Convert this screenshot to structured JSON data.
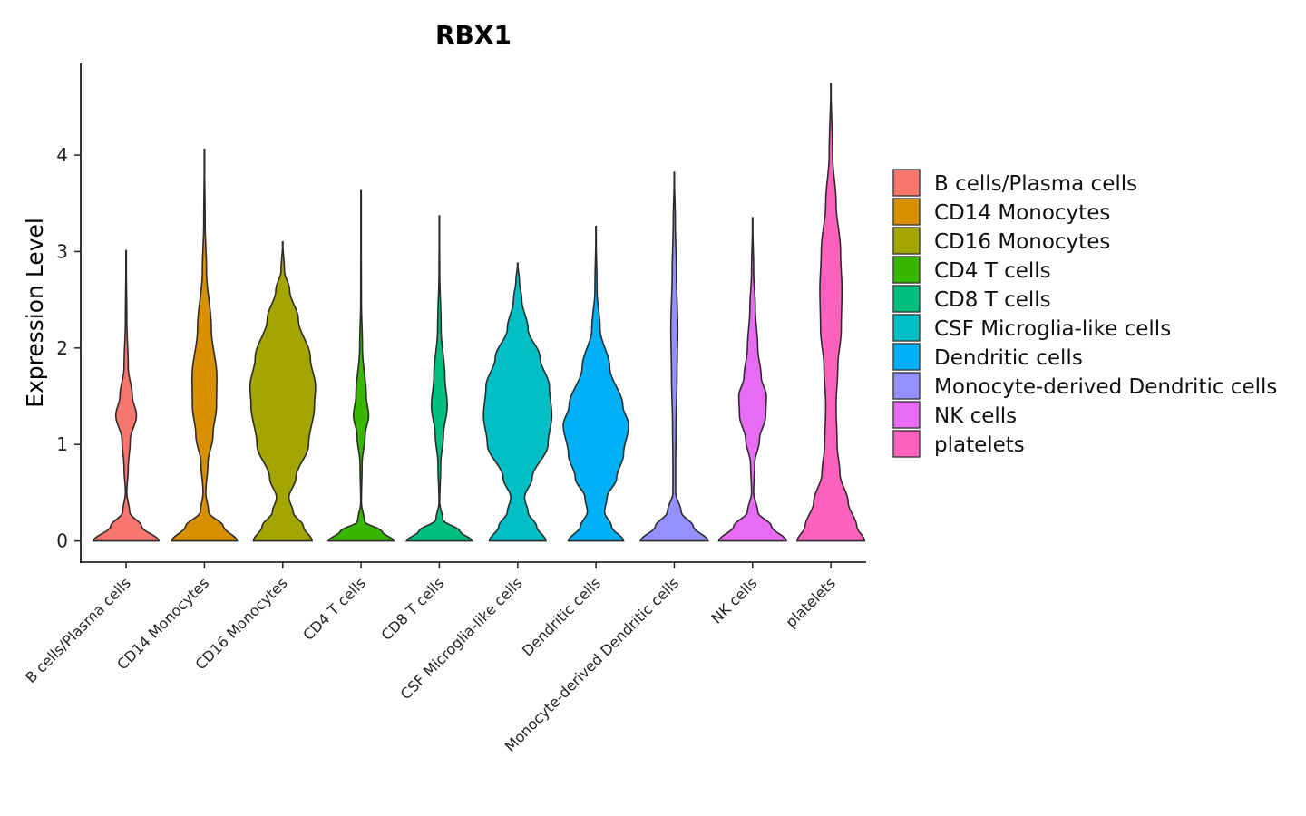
{
  "chart_data": {
    "type": "violin",
    "title": "RBX1",
    "xlabel": "",
    "ylabel": "Expression Level",
    "ylim": [
      -0.22,
      4.95
    ],
    "yticks": [
      0,
      1,
      2,
      3,
      4
    ],
    "grid": false,
    "legend_position": "right",
    "categories": [
      "B cells/Plasma cells",
      "CD14 Monocytes",
      "CD16 Monocytes",
      "CD4 T cells",
      "CD8 T cells",
      "CSF Microglia-like cells",
      "Dendritic cells",
      "Monocyte-derived Dendritic cells",
      "NK cells",
      "platelets"
    ],
    "colors": [
      "#F8766D",
      "#D89000",
      "#A3A500",
      "#39B600",
      "#00BF7D",
      "#00BFC4",
      "#00B0F6",
      "#9590FF",
      "#E76BF3",
      "#FF62BC"
    ],
    "series": [
      {
        "name": "B cells/Plasma cells",
        "max": 3.01,
        "profile": [
          [
            0,
            0.95
          ],
          [
            0.15,
            0.45
          ],
          [
            0.3,
            0.1
          ],
          [
            0.5,
            0.02
          ],
          [
            0.75,
            0.06
          ],
          [
            1.05,
            0.12
          ],
          [
            1.3,
            0.3
          ],
          [
            1.5,
            0.18
          ],
          [
            1.8,
            0.06
          ],
          [
            2.3,
            0.02
          ],
          [
            3.01,
            0.0
          ]
        ]
      },
      {
        "name": "CD14 Monocytes",
        "max": 4.06,
        "profile": [
          [
            0,
            0.95
          ],
          [
            0.15,
            0.55
          ],
          [
            0.3,
            0.12
          ],
          [
            0.5,
            0.04
          ],
          [
            0.8,
            0.1
          ],
          [
            1.1,
            0.25
          ],
          [
            1.4,
            0.35
          ],
          [
            1.7,
            0.36
          ],
          [
            2.2,
            0.2
          ],
          [
            2.8,
            0.06
          ],
          [
            3.3,
            0.02
          ],
          [
            4.06,
            0.0
          ]
        ]
      },
      {
        "name": "CD16 Monocytes",
        "max": 3.1,
        "profile": [
          [
            0,
            0.85
          ],
          [
            0.15,
            0.6
          ],
          [
            0.3,
            0.3
          ],
          [
            0.45,
            0.18
          ],
          [
            0.65,
            0.38
          ],
          [
            1.0,
            0.75
          ],
          [
            1.4,
            0.92
          ],
          [
            1.6,
            0.95
          ],
          [
            1.9,
            0.8
          ],
          [
            2.3,
            0.45
          ],
          [
            2.6,
            0.2
          ],
          [
            2.8,
            0.05
          ],
          [
            3.1,
            0.0
          ]
        ]
      },
      {
        "name": "CD4 T cells",
        "max": 3.63,
        "profile": [
          [
            0,
            0.95
          ],
          [
            0.1,
            0.6
          ],
          [
            0.2,
            0.1
          ],
          [
            0.4,
            0.01
          ],
          [
            0.8,
            0.03
          ],
          [
            1.1,
            0.12
          ],
          [
            1.3,
            0.22
          ],
          [
            1.5,
            0.15
          ],
          [
            2.0,
            0.04
          ],
          [
            2.5,
            0.01
          ],
          [
            3.63,
            0.0
          ]
        ]
      },
      {
        "name": "CD8 T cells",
        "max": 3.37,
        "profile": [
          [
            0,
            0.95
          ],
          [
            0.1,
            0.6
          ],
          [
            0.22,
            0.1
          ],
          [
            0.4,
            0.01
          ],
          [
            0.8,
            0.04
          ],
          [
            1.1,
            0.12
          ],
          [
            1.4,
            0.23
          ],
          [
            1.7,
            0.16
          ],
          [
            2.2,
            0.05
          ],
          [
            2.8,
            0.01
          ],
          [
            3.37,
            0.0
          ]
        ]
      },
      {
        "name": "CSF Microglia-like cells",
        "max": 2.88,
        "profile": [
          [
            0,
            0.82
          ],
          [
            0.15,
            0.55
          ],
          [
            0.3,
            0.3
          ],
          [
            0.45,
            0.2
          ],
          [
            0.65,
            0.42
          ],
          [
            1.0,
            0.88
          ],
          [
            1.3,
            0.99
          ],
          [
            1.6,
            0.92
          ],
          [
            1.9,
            0.65
          ],
          [
            2.2,
            0.3
          ],
          [
            2.5,
            0.12
          ],
          [
            2.7,
            0.05
          ],
          [
            2.88,
            0.0
          ]
        ]
      },
      {
        "name": "Dendritic cells",
        "max": 3.26,
        "profile": [
          [
            0,
            0.8
          ],
          [
            0.15,
            0.45
          ],
          [
            0.3,
            0.25
          ],
          [
            0.45,
            0.32
          ],
          [
            0.65,
            0.6
          ],
          [
            0.9,
            0.8
          ],
          [
            1.2,
            0.95
          ],
          [
            1.4,
            0.78
          ],
          [
            1.8,
            0.4
          ],
          [
            2.2,
            0.12
          ],
          [
            2.6,
            0.03
          ],
          [
            3.26,
            0.0
          ]
        ]
      },
      {
        "name": "Monocyte-derived Dendritic cells",
        "max": 3.82,
        "profile": [
          [
            0,
            0.98
          ],
          [
            0.15,
            0.55
          ],
          [
            0.3,
            0.2
          ],
          [
            0.5,
            0.04
          ],
          [
            0.8,
            0.04
          ],
          [
            1.2,
            0.05
          ],
          [
            1.7,
            0.08
          ],
          [
            2.2,
            0.1
          ],
          [
            2.8,
            0.06
          ],
          [
            3.3,
            0.03
          ],
          [
            3.82,
            0.0
          ]
        ]
      },
      {
        "name": "NK cells",
        "max": 3.35,
        "profile": [
          [
            0,
            0.98
          ],
          [
            0.15,
            0.55
          ],
          [
            0.3,
            0.15
          ],
          [
            0.5,
            0.03
          ],
          [
            0.8,
            0.06
          ],
          [
            1.05,
            0.2
          ],
          [
            1.3,
            0.38
          ],
          [
            1.5,
            0.4
          ],
          [
            1.7,
            0.25
          ],
          [
            2.0,
            0.15
          ],
          [
            2.4,
            0.08
          ],
          [
            2.8,
            0.03
          ],
          [
            3.35,
            0.0
          ]
        ]
      },
      {
        "name": "platelets",
        "max": 4.74,
        "profile": [
          [
            0,
            0.98
          ],
          [
            0.15,
            0.75
          ],
          [
            0.4,
            0.5
          ],
          [
            0.7,
            0.26
          ],
          [
            1.0,
            0.18
          ],
          [
            1.4,
            0.15
          ],
          [
            1.8,
            0.2
          ],
          [
            2.2,
            0.3
          ],
          [
            2.6,
            0.32
          ],
          [
            3.0,
            0.28
          ],
          [
            3.5,
            0.15
          ],
          [
            4.0,
            0.05
          ],
          [
            4.74,
            0.0
          ]
        ]
      }
    ]
  }
}
